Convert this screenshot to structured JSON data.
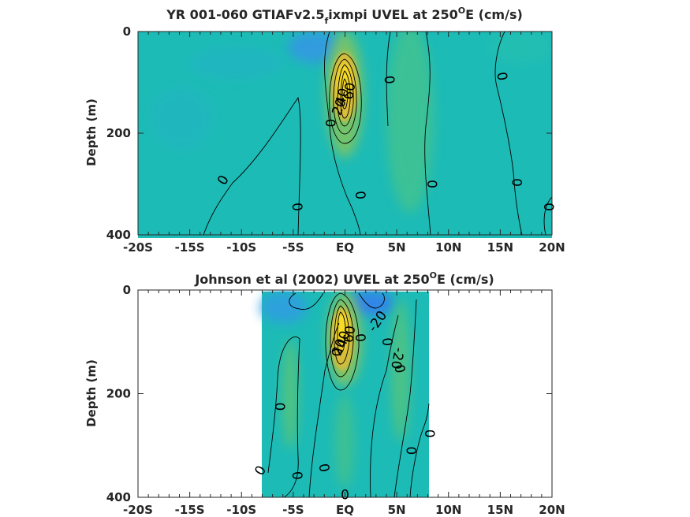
{
  "chart_data": [
    {
      "type": "heatmap",
      "title": "YR 001-060 GTIAFv2.5_f ixmpi UVEL at 250ºE (cm/s)",
      "title_parts": {
        "pre": "YR 001-060 GTIAFv2.5",
        "sub": "f",
        "mid": "ixmpi UVEL at 250",
        "sup": "O",
        "post": "E (cm/s)"
      },
      "ylabel": "Depth (m)",
      "xlabel": "",
      "xlim": [
        -20,
        20
      ],
      "ylim": [
        400,
        0
      ],
      "xticks": [
        -20,
        -15,
        -10,
        -5,
        0,
        5,
        10,
        15,
        20
      ],
      "xtick_labels": [
        "-20S",
        "-15S",
        "-10S",
        "-5S",
        "EQ",
        "5N",
        "10N",
        "15N",
        "20N"
      ],
      "yticks": [
        0,
        200,
        400
      ],
      "ytick_labels": [
        "0",
        "200",
        "400"
      ],
      "data_extent_x": [
        -20,
        20
      ],
      "data_extent_y": [
        0,
        395
      ],
      "jet_core": {
        "lat": 0,
        "depth": 110,
        "max": 80
      },
      "contour_labels": [
        {
          "text": "0",
          "lat": -11.8,
          "depth": 292,
          "angle": -60
        },
        {
          "text": "0",
          "lat": -4.6,
          "depth": 345,
          "angle": 85
        },
        {
          "text": "0",
          "lat": -1.4,
          "depth": 180,
          "angle": 90
        },
        {
          "text": "0",
          "lat": 1.5,
          "depth": 322,
          "angle": 85
        },
        {
          "text": "0",
          "lat": 4.3,
          "depth": 95,
          "angle": 85
        },
        {
          "text": "0",
          "lat": 8.4,
          "depth": 300,
          "angle": 90
        },
        {
          "text": "0",
          "lat": 15.2,
          "depth": 88,
          "angle": 80
        },
        {
          "text": "0",
          "lat": 16.6,
          "depth": 297,
          "angle": 90
        },
        {
          "text": "0",
          "lat": 19.7,
          "depth": 345,
          "angle": 90
        },
        {
          "text": "20",
          "lat": -0.6,
          "depth": 148,
          "angle": -70
        },
        {
          "text": "40",
          "lat": -0.3,
          "depth": 128,
          "angle": -75
        },
        {
          "text": "60",
          "lat": 0.4,
          "depth": 117,
          "angle": -80
        }
      ]
    },
    {
      "type": "heatmap",
      "title": "Johnson et al (2002) UVEL at 250ºE (cm/s)",
      "title_parts": {
        "pre": "Johnson et al (2002) UVEL at 250",
        "sup": "O",
        "post": "E (cm/s)"
      },
      "ylabel": "Depth (m)",
      "xlabel": "",
      "xlim": [
        -20,
        20
      ],
      "ylim": [
        400,
        0
      ],
      "xticks": [
        -20,
        -15,
        -10,
        -5,
        0,
        5,
        10,
        15,
        20
      ],
      "xtick_labels": [
        "-20S",
        "-15S",
        "-10S",
        "-5S",
        "EQ",
        "5N",
        "10N",
        "15N",
        "20N"
      ],
      "yticks": [
        0,
        200,
        400
      ],
      "ytick_labels": [
        "0",
        "200",
        "400"
      ],
      "data_extent_x": [
        -8,
        8.2
      ],
      "data_extent_y": [
        0,
        400
      ],
      "jet_core": {
        "lat": 0,
        "depth": 75,
        "max": 80
      },
      "contour_labels": [
        {
          "text": "0",
          "lat": -8.2,
          "depth": 348,
          "angle": -60
        },
        {
          "text": "0",
          "lat": -6.3,
          "depth": 225,
          "angle": 90
        },
        {
          "text": "0",
          "lat": -4.6,
          "depth": 358,
          "angle": 85
        },
        {
          "text": "0",
          "lat": -2.0,
          "depth": 343,
          "angle": 80
        },
        {
          "text": "0",
          "lat": -0.8,
          "depth": 120,
          "angle": 90
        },
        {
          "text": "0",
          "lat": 1.5,
          "depth": 92,
          "angle": 85
        },
        {
          "text": "0",
          "lat": 4.1,
          "depth": 100,
          "angle": 85
        },
        {
          "text": "0",
          "lat": 5.3,
          "depth": 152,
          "angle": 80
        },
        {
          "text": "0",
          "lat": 6.4,
          "depth": 310,
          "angle": 90
        },
        {
          "text": "0",
          "lat": 8.2,
          "depth": 277,
          "angle": 90
        },
        {
          "text": "0",
          "lat": 0,
          "depth": 395,
          "angle": 0
        },
        {
          "text": "-20",
          "lat": 3.1,
          "depth": 60,
          "angle": -55
        },
        {
          "text": "-20",
          "lat": 5.1,
          "depth": 132,
          "angle": 100
        },
        {
          "text": "20",
          "lat": -0.6,
          "depth": 110,
          "angle": -70
        },
        {
          "text": "40",
          "lat": -0.2,
          "depth": 95,
          "angle": -75
        },
        {
          "text": "60",
          "lat": 0.4,
          "depth": 85,
          "angle": -80
        }
      ]
    }
  ]
}
